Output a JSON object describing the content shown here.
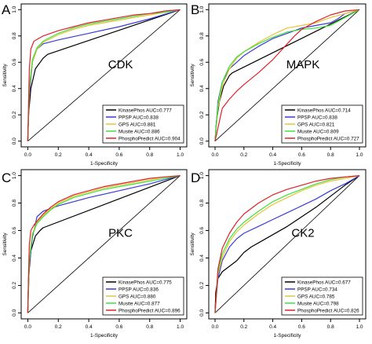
{
  "panel_letters": [
    "A",
    "B",
    "C",
    "D"
  ],
  "colors": {
    "KinasePhos": "#000000",
    "PPSP": "#3b3bd6",
    "GPS": "#e8c23a",
    "Musite": "#3ee03e",
    "PhosphoPredict": "#e0202a",
    "diagonal": "#000000",
    "axis": "#000000"
  },
  "chart_data": [
    {
      "type": "line",
      "panel": "A",
      "title": "CDK",
      "xlabel": "1-Specificity",
      "ylabel": "Sensitivity",
      "xlim": [
        0,
        1
      ],
      "ylim": [
        0,
        1
      ],
      "xticks": [
        "0.0",
        "0.2",
        "0.4",
        "0.6",
        "0.8",
        "1.0"
      ],
      "yticks": [
        "0.0",
        "0.2",
        "0.4",
        "0.6",
        "0.8",
        "1.0"
      ],
      "grid": false,
      "legend_position": "bottom-right",
      "diagonal": true,
      "series": [
        {
          "name": "KinasePhos AUC=0.777",
          "key": "KinasePhos",
          "x": [
            0,
            0.005,
            0.02,
            0.05,
            0.1,
            0.13,
            1.0
          ],
          "y": [
            0,
            0.2,
            0.4,
            0.55,
            0.63,
            0.66,
            1.0
          ]
        },
        {
          "name": "PPSP AUC=0.838",
          "key": "PPSP",
          "x": [
            0,
            0.01,
            0.03,
            0.06,
            0.1,
            0.2,
            0.4,
            0.6,
            0.8,
            1.0
          ],
          "y": [
            0,
            0.35,
            0.6,
            0.7,
            0.74,
            0.77,
            0.82,
            0.87,
            0.93,
            1.0
          ]
        },
        {
          "name": "GPS AUC=0.881",
          "key": "GPS",
          "x": [
            0,
            0.01,
            0.03,
            0.06,
            0.1,
            0.15,
            0.2,
            0.3,
            0.4,
            0.5,
            0.6,
            0.7,
            0.8,
            0.9,
            1.0
          ],
          "y": [
            0,
            0.4,
            0.6,
            0.7,
            0.75,
            0.78,
            0.81,
            0.85,
            0.88,
            0.9,
            0.92,
            0.94,
            0.96,
            0.98,
            1.0
          ]
        },
        {
          "name": "Musite AUC=0.886",
          "key": "Musite",
          "x": [
            0,
            0.01,
            0.03,
            0.06,
            0.1,
            0.15,
            0.2,
            0.3,
            0.4,
            0.5,
            0.6,
            0.7,
            0.8,
            0.9,
            1.0
          ],
          "y": [
            0,
            0.42,
            0.62,
            0.71,
            0.76,
            0.79,
            0.82,
            0.86,
            0.89,
            0.91,
            0.93,
            0.95,
            0.97,
            0.98,
            1.0
          ]
        },
        {
          "name": "PhosphoPredict AUC=0.904",
          "key": "PhosphoPredict",
          "x": [
            0,
            0.005,
            0.01,
            0.02,
            0.04,
            0.07,
            0.1,
            0.15,
            0.2,
            0.3,
            0.4,
            0.5,
            0.6,
            0.7,
            0.8,
            0.9,
            1.0
          ],
          "y": [
            0,
            0.3,
            0.55,
            0.7,
            0.76,
            0.78,
            0.8,
            0.82,
            0.84,
            0.87,
            0.9,
            0.92,
            0.94,
            0.96,
            0.97,
            0.99,
            1.0
          ]
        }
      ]
    },
    {
      "type": "line",
      "panel": "B",
      "title": "MAPK",
      "xlabel": "1-Specificity",
      "ylabel": "Sensitivity",
      "xlim": [
        0,
        1
      ],
      "ylim": [
        0,
        1
      ],
      "xticks": [
        "0.0",
        "0.2",
        "0.4",
        "0.6",
        "0.8",
        "1.0"
      ],
      "yticks": [
        "0.0",
        "0.2",
        "0.4",
        "0.6",
        "0.8",
        "1.0"
      ],
      "grid": false,
      "legend_position": "bottom-right",
      "diagonal": true,
      "series": [
        {
          "name": "KinasePhos AUC=0.714",
          "key": "KinasePhos",
          "x": [
            0,
            0.01,
            0.03,
            0.06,
            0.1,
            0.12,
            1.0
          ],
          "y": [
            0,
            0.15,
            0.3,
            0.42,
            0.5,
            0.52,
            1.0
          ]
        },
        {
          "name": "PPSP AUC=0.838",
          "key": "PPSP",
          "x": [
            0,
            0.02,
            0.05,
            0.1,
            0.15,
            0.2,
            0.3,
            0.4,
            0.5,
            0.6,
            0.7,
            0.8,
            0.85,
            0.9,
            1.0
          ],
          "y": [
            0,
            0.3,
            0.45,
            0.55,
            0.6,
            0.65,
            0.72,
            0.78,
            0.82,
            0.86,
            0.88,
            0.9,
            0.93,
            0.97,
            1.0
          ]
        },
        {
          "name": "GPS AUC=0.821",
          "key": "GPS",
          "x": [
            0,
            0.02,
            0.05,
            0.1,
            0.15,
            0.2,
            0.3,
            0.4,
            0.5,
            0.6,
            0.7,
            0.8,
            0.9,
            1.0
          ],
          "y": [
            0,
            0.25,
            0.42,
            0.55,
            0.63,
            0.68,
            0.75,
            0.81,
            0.86,
            0.88,
            0.9,
            0.94,
            0.97,
            1.0
          ]
        },
        {
          "name": "Musite AUC=0.809",
          "key": "Musite",
          "x": [
            0,
            0.02,
            0.05,
            0.1,
            0.15,
            0.2,
            0.3,
            0.4,
            0.5,
            0.6,
            0.7,
            0.8,
            0.9,
            1.0
          ],
          "y": [
            0,
            0.28,
            0.45,
            0.57,
            0.64,
            0.68,
            0.74,
            0.79,
            0.83,
            0.85,
            0.86,
            0.88,
            0.94,
            1.0
          ]
        },
        {
          "name": "PhosphoPredict AUC=0.727",
          "key": "PhosphoPredict",
          "x": [
            0,
            0.02,
            0.05,
            0.1,
            0.15,
            0.2,
            0.3,
            0.4,
            0.5,
            0.55,
            0.6,
            0.7,
            0.8,
            0.9,
            1.0
          ],
          "y": [
            0,
            0.1,
            0.25,
            0.32,
            0.38,
            0.43,
            0.52,
            0.62,
            0.74,
            0.8,
            0.85,
            0.91,
            0.96,
            0.99,
            1.0
          ]
        }
      ]
    },
    {
      "type": "line",
      "panel": "C",
      "title": "PKC",
      "xlabel": "1-Specificity",
      "ylabel": "Sensitivity",
      "xlim": [
        0,
        1
      ],
      "ylim": [
        0,
        1
      ],
      "xticks": [
        "0.0",
        "0.2",
        "0.4",
        "0.6",
        "0.8",
        "1.0"
      ],
      "yticks": [
        "0.0",
        "0.2",
        "0.4",
        "0.6",
        "0.8",
        "1.0"
      ],
      "grid": false,
      "legend_position": "bottom-right",
      "diagonal": true,
      "series": [
        {
          "name": "KinasePhos AUC=0.775",
          "key": "KinasePhos",
          "x": [
            0,
            0.005,
            0.02,
            0.05,
            0.08,
            0.1,
            1.0
          ],
          "y": [
            0,
            0.25,
            0.45,
            0.56,
            0.6,
            0.62,
            1.0
          ]
        },
        {
          "name": "PPSP AUC=0.836",
          "key": "PPSP",
          "x": [
            0,
            0.01,
            0.03,
            0.06,
            0.1,
            0.2,
            0.4,
            0.6,
            0.8,
            1.0
          ],
          "y": [
            0,
            0.35,
            0.55,
            0.7,
            0.74,
            0.78,
            0.84,
            0.89,
            0.94,
            1.0
          ]
        },
        {
          "name": "GPS AUC=0.880",
          "key": "GPS",
          "x": [
            0,
            0.01,
            0.03,
            0.06,
            0.1,
            0.15,
            0.2,
            0.3,
            0.4,
            0.5,
            0.6,
            0.7,
            0.8,
            0.9,
            1.0
          ],
          "y": [
            0,
            0.4,
            0.58,
            0.66,
            0.71,
            0.76,
            0.8,
            0.85,
            0.88,
            0.91,
            0.93,
            0.95,
            0.97,
            0.99,
            1.0
          ]
        },
        {
          "name": "Musite AUC=0.877",
          "key": "Musite",
          "x": [
            0,
            0.01,
            0.03,
            0.06,
            0.1,
            0.15,
            0.2,
            0.3,
            0.4,
            0.5,
            0.6,
            0.7,
            0.8,
            0.9,
            1.0
          ],
          "y": [
            0,
            0.38,
            0.57,
            0.65,
            0.7,
            0.75,
            0.79,
            0.84,
            0.87,
            0.9,
            0.92,
            0.94,
            0.96,
            0.98,
            1.0
          ]
        },
        {
          "name": "PhosphoPredict AUC=0.896",
          "key": "PhosphoPredict",
          "x": [
            0,
            0.005,
            0.01,
            0.02,
            0.04,
            0.07,
            0.1,
            0.15,
            0.2,
            0.3,
            0.4,
            0.5,
            0.6,
            0.7,
            0.8,
            0.9,
            1.0
          ],
          "y": [
            0,
            0.3,
            0.5,
            0.6,
            0.64,
            0.68,
            0.72,
            0.77,
            0.81,
            0.86,
            0.89,
            0.92,
            0.94,
            0.96,
            0.98,
            0.99,
            1.0
          ]
        }
      ]
    },
    {
      "type": "line",
      "panel": "D",
      "title": "CK2",
      "xlabel": "1-Specificity",
      "ylabel": "Sensitivity",
      "xlim": [
        0,
        1
      ],
      "ylim": [
        0,
        1
      ],
      "xticks": [
        "0.0",
        "0.2",
        "0.4",
        "0.6",
        "0.8",
        "1.0"
      ],
      "yticks": [
        "0.0",
        "0.2",
        "0.4",
        "0.6",
        "0.8",
        "1.0"
      ],
      "grid": false,
      "legend_position": "bottom-right",
      "diagonal": true,
      "series": [
        {
          "name": "KinasePhos AUC=0.677",
          "key": "KinasePhos",
          "x": [
            0,
            0.005,
            0.02,
            0.05,
            0.1,
            0.15,
            0.2,
            0.25,
            0.3,
            0.4,
            0.5,
            0.6,
            0.7,
            0.8,
            0.9,
            1.0
          ],
          "y": [
            0,
            0.15,
            0.25,
            0.3,
            0.34,
            0.38,
            0.44,
            0.48,
            0.51,
            0.57,
            0.63,
            0.7,
            0.77,
            0.85,
            0.93,
            1.0
          ]
        },
        {
          "name": "PPSP AUC=0.734",
          "key": "PPSP",
          "x": [
            0,
            0.02,
            0.05,
            0.1,
            0.15,
            0.2,
            0.3,
            0.4,
            0.5,
            0.6,
            0.7,
            0.8,
            0.9,
            1.0
          ],
          "y": [
            0,
            0.25,
            0.38,
            0.48,
            0.54,
            0.58,
            0.63,
            0.68,
            0.73,
            0.78,
            0.83,
            0.89,
            0.94,
            1.0
          ]
        },
        {
          "name": "GPS AUC=0.785",
          "key": "GPS",
          "x": [
            0,
            0.02,
            0.05,
            0.1,
            0.15,
            0.2,
            0.3,
            0.4,
            0.5,
            0.6,
            0.7,
            0.8,
            0.9,
            1.0
          ],
          "y": [
            0,
            0.28,
            0.4,
            0.52,
            0.59,
            0.64,
            0.72,
            0.79,
            0.84,
            0.89,
            0.93,
            0.96,
            0.98,
            1.0
          ]
        },
        {
          "name": "Musite AUC=0.798",
          "key": "Musite",
          "x": [
            0,
            0.02,
            0.05,
            0.1,
            0.15,
            0.2,
            0.3,
            0.4,
            0.5,
            0.6,
            0.7,
            0.8,
            0.9,
            1.0
          ],
          "y": [
            0,
            0.3,
            0.43,
            0.54,
            0.61,
            0.66,
            0.74,
            0.81,
            0.86,
            0.9,
            0.94,
            0.97,
            0.99,
            1.0
          ]
        },
        {
          "name": "PhosphoPredict AUC=0.826",
          "key": "PhosphoPredict",
          "x": [
            0,
            0.02,
            0.05,
            0.1,
            0.15,
            0.2,
            0.3,
            0.4,
            0.5,
            0.6,
            0.7,
            0.8,
            0.9,
            1.0
          ],
          "y": [
            0,
            0.32,
            0.47,
            0.58,
            0.66,
            0.72,
            0.8,
            0.86,
            0.9,
            0.93,
            0.96,
            0.98,
            0.99,
            1.0
          ]
        }
      ]
    }
  ]
}
